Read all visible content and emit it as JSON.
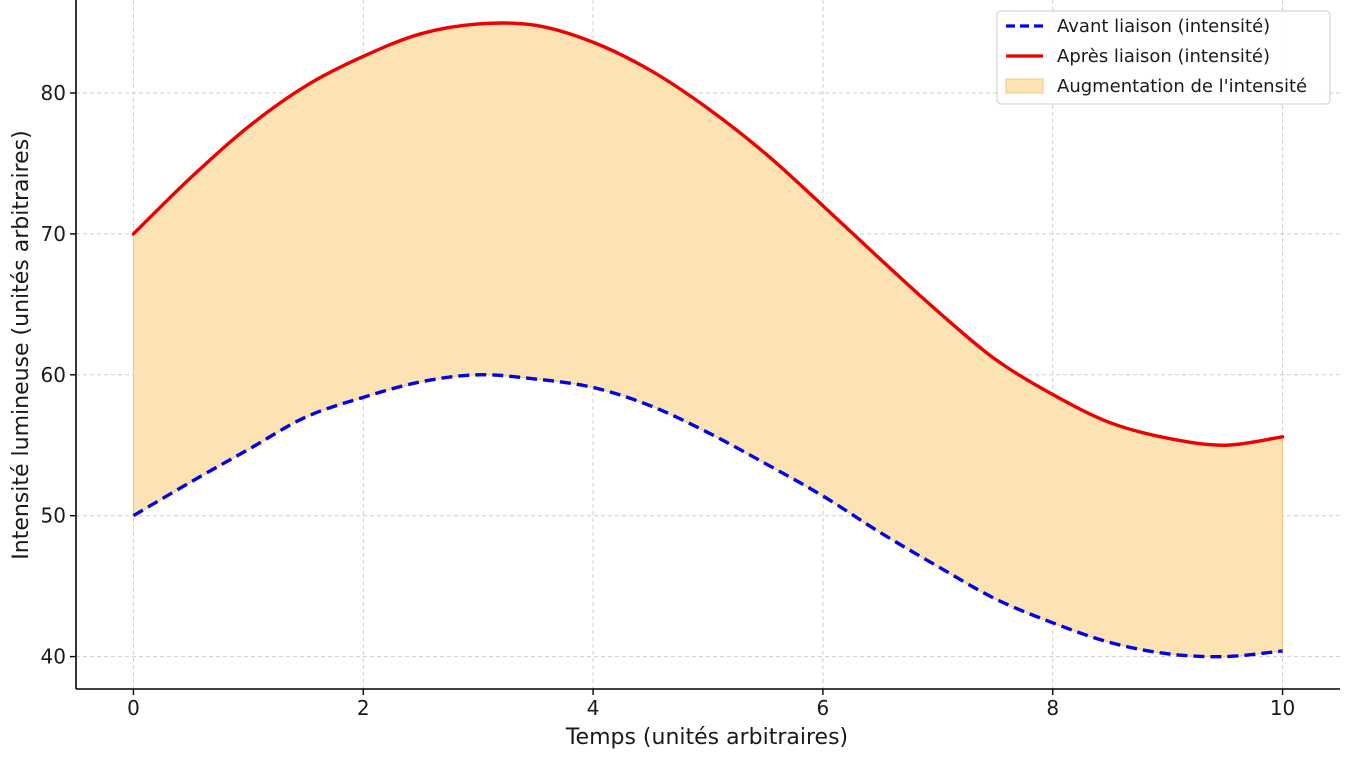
{
  "chart_data": {
    "type": "line",
    "title": "",
    "xlabel": "Temps (unités arbitraires)",
    "ylabel": "Intensité lumineuse (unités arbitraires)",
    "xlim": [
      -0.5,
      10.5
    ],
    "ylim": [
      37.7,
      86.6
    ],
    "xticks": [
      0,
      2,
      4,
      6,
      8,
      10
    ],
    "yticks": [
      40,
      50,
      60,
      70,
      80
    ],
    "grid": true,
    "legend_position": "top-right",
    "x": [
      0,
      0.5,
      1,
      1.5,
      2,
      2.5,
      3,
      3.5,
      4,
      4.5,
      5,
      5.5,
      6,
      6.5,
      7,
      7.5,
      8,
      8.5,
      9,
      9.5,
      10
    ],
    "series": [
      {
        "name": "Avant liaison (intensité)",
        "color": "#0000ee",
        "style": "dashed",
        "values": [
          50.0,
          52.4,
          54.7,
          57.0,
          58.4,
          59.5,
          60.0,
          59.7,
          59.1,
          57.8,
          55.9,
          53.7,
          51.4,
          48.8,
          46.4,
          44.1,
          42.4,
          41.0,
          40.2,
          40.0,
          40.4
        ]
      },
      {
        "name": "Après liaison (intensité)",
        "color": "#ee0000",
        "style": "solid",
        "values": [
          70.0,
          74.0,
          77.6,
          80.5,
          82.6,
          84.2,
          84.9,
          84.8,
          83.6,
          81.6,
          78.9,
          75.7,
          72.0,
          68.2,
          64.5,
          61.1,
          58.6,
          56.6,
          55.5,
          55.0,
          55.6
        ]
      }
    ],
    "fill": {
      "name": "Augmentation de l'intensité",
      "color": "#fde3b4",
      "edge_color": "#f5c77e",
      "between": [
        "Avant liaison (intensité)",
        "Après liaison (intensité)"
      ]
    },
    "colors": {
      "axis": "#000000",
      "grid": "#cfcfcf",
      "legend_border": "#cccccc"
    }
  }
}
